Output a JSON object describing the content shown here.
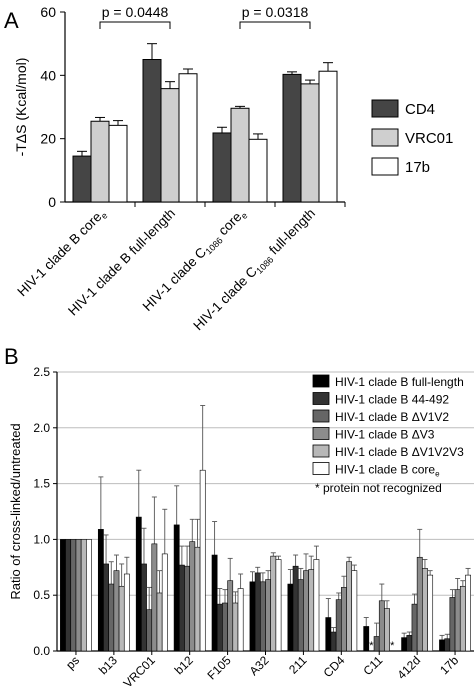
{
  "chart_data": [
    {
      "panel": "A",
      "type": "bar",
      "ylabel": "-TΔS (Kcal/mol)",
      "ylim": [
        0,
        60
      ],
      "yticks": [
        "0",
        "20",
        "40",
        "60"
      ],
      "grid": false,
      "legend_position": "right",
      "categories": [
        {
          "main": "HIV-1 clade B core",
          "sub": "e",
          "tail": ""
        },
        {
          "main": "HIV-1 clade B full-length",
          "sub": "",
          "tail": ""
        },
        {
          "main": "HIV-1 clade C",
          "sub": "1086",
          "tail": " core",
          "sub2": "e"
        },
        {
          "main": "HIV-1 clade C",
          "sub": "1086",
          "tail": " full-length"
        }
      ],
      "series": [
        {
          "name": "CD4",
          "color": "#454545",
          "values": [
            14.5,
            45.0,
            21.8,
            40.3
          ],
          "errors": [
            1.5,
            5.0,
            1.8,
            0.8
          ]
        },
        {
          "name": "VRC01",
          "color": "#cfcfcf",
          "values": [
            25.5,
            35.8,
            29.6,
            37.3
          ],
          "errors": [
            1.2,
            2.2,
            0.6,
            1.2
          ]
        },
        {
          "name": "17b",
          "color": "#ffffff",
          "values": [
            24.2,
            40.5,
            19.8,
            41.3
          ],
          "errors": [
            1.5,
            1.5,
            1.7,
            2.7
          ]
        }
      ],
      "annotations": [
        {
          "text": "p = 0.0448",
          "between": [
            0,
            1
          ]
        },
        {
          "text": "p = 0.0318",
          "between": [
            2,
            3
          ]
        }
      ]
    },
    {
      "panel": "B",
      "type": "bar",
      "ylabel": "Ratio of cross-linked/untreated",
      "ylim": [
        0,
        2.5
      ],
      "yticks": [
        "0.0",
        "0.5",
        "1.0",
        "1.5",
        "2.0",
        "2.5"
      ],
      "grid": true,
      "legend_position": "top-right",
      "categories": [
        "ps",
        "b13",
        "VRC01",
        "b12",
        "F105",
        "A32",
        "211",
        "CD4",
        "C11",
        "412d",
        "17b"
      ],
      "series": [
        {
          "name": "HIV-1 clade B full-length",
          "color": "#000000",
          "values": [
            1.0,
            1.09,
            1.2,
            1.13,
            0.86,
            0.62,
            0.6,
            0.3,
            0.22,
            0.12,
            0.1
          ],
          "errors": [
            0,
            0.47,
            0.42,
            0.35,
            0.3,
            0.09,
            0.13,
            0.17,
            0.08,
            0.04,
            0.04
          ]
        },
        {
          "name": "HIV-1 clade B 44-492",
          "color": "#333333",
          "values": [
            1.0,
            0.78,
            0.78,
            0.77,
            0.42,
            0.7,
            0.76,
            0.17,
            null,
            0.14,
            0.11
          ],
          "errors": [
            0,
            0.26,
            0.32,
            0.17,
            0.14,
            0.05,
            0.1,
            0.04,
            0,
            0.03,
            0.04
          ]
        },
        {
          "name": "HIV-1 clade B ΔV1V2",
          "color": "#666666",
          "values": [
            1.0,
            0.6,
            0.37,
            0.76,
            0.43,
            0.62,
            0.64,
            0.46,
            0.13,
            0.42,
            0.48
          ],
          "errors": [
            0,
            0.2,
            0.2,
            0.18,
            0.12,
            0.08,
            0.1,
            0.06,
            0.12,
            0.09,
            0.07
          ]
        },
        {
          "name": "HIV-1 clade B ΔV3",
          "color": "#8c8c8c",
          "values": [
            1.0,
            0.72,
            0.96,
            0.98,
            0.63,
            0.64,
            0.72,
            0.57,
            0.45,
            0.84,
            0.55
          ],
          "errors": [
            0,
            0.14,
            0.42,
            0.2,
            0.2,
            0.08,
            0.15,
            0.1,
            0.15,
            0.25,
            0.1
          ]
        },
        {
          "name": "HIV-1 clade B ΔV1V2V3",
          "color": "#b8b8b8",
          "values": [
            1.0,
            0.58,
            0.52,
            0.93,
            0.43,
            0.85,
            0.73,
            0.8,
            0.38,
            0.74,
            0.58
          ],
          "errors": [
            0,
            0.2,
            0.2,
            0.25,
            0.1,
            0.03,
            0.12,
            0.04,
            0.07,
            0.08,
            0.05
          ]
        },
        {
          "name": "HIV-1 clade B core",
          "name_sub": "e",
          "color": "#ffffff",
          "values": [
            1.0,
            0.69,
            0.87,
            1.62,
            0.56,
            0.82,
            0.82,
            0.72,
            null,
            0.68,
            0.68
          ],
          "errors": [
            0,
            0.15,
            0.4,
            0.58,
            0.13,
            0.03,
            0.12,
            0.05,
            0,
            0.04,
            0.06
          ]
        }
      ],
      "missing_markers": [
        {
          "category": "C11",
          "series": 1,
          "text": "*"
        },
        {
          "category": "C11",
          "series": 5,
          "text": "*"
        }
      ],
      "legend_note": "* protein not recognized"
    }
  ],
  "panel_labels": [
    "A",
    "B"
  ]
}
